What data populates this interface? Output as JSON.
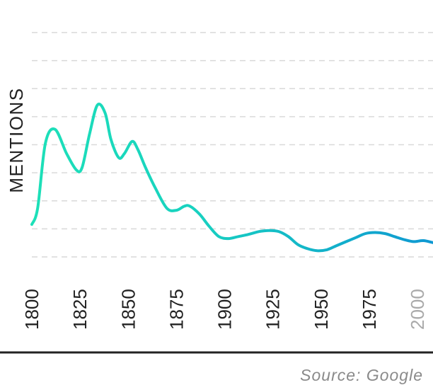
{
  "chart_data": {
    "type": "line",
    "title": "",
    "xlabel": "",
    "ylabel": "MENTIONS",
    "x_ticks": [
      "1800",
      "1825",
      "1850",
      "1875",
      "1900",
      "1925",
      "1950",
      "1975",
      "2000"
    ],
    "x_range": [
      1800,
      2008
    ],
    "y_range": [
      0,
      1
    ],
    "grid": true,
    "gridline_count": 9,
    "series": [
      {
        "x": [
          1800,
          1803,
          1807,
          1812,
          1818,
          1823,
          1826,
          1830,
          1834,
          1838,
          1841,
          1845,
          1848,
          1852,
          1855,
          1859,
          1864,
          1870,
          1875,
          1879,
          1882,
          1887,
          1892,
          1897,
          1902,
          1907,
          1912,
          1918,
          1923,
          1928,
          1933,
          1938,
          1943,
          1948,
          1953,
          1958,
          1963,
          1968,
          1973,
          1978,
          1983,
          1988,
          1993,
          1998,
          2003,
          2008
        ],
        "y": [
          0.15,
          0.23,
          0.55,
          0.62,
          0.5,
          0.42,
          0.43,
          0.6,
          0.74,
          0.7,
          0.57,
          0.48,
          0.5,
          0.56,
          0.52,
          0.43,
          0.33,
          0.23,
          0.22,
          0.24,
          0.24,
          0.2,
          0.14,
          0.09,
          0.08,
          0.09,
          0.1,
          0.115,
          0.12,
          0.115,
          0.09,
          0.05,
          0.03,
          0.02,
          0.025,
          0.045,
          0.065,
          0.085,
          0.105,
          0.11,
          0.105,
          0.09,
          0.075,
          0.065,
          0.07,
          0.06
        ]
      }
    ],
    "colors": {
      "line_start": "#1de0b8",
      "line_end": "#0f98d2",
      "grid": "#d9d9d9",
      "label": "#222222",
      "muted_tick": "#aaaaaa",
      "baseline": "#222222",
      "source": "#8a8a8a"
    }
  },
  "source_text": "Source: Google"
}
